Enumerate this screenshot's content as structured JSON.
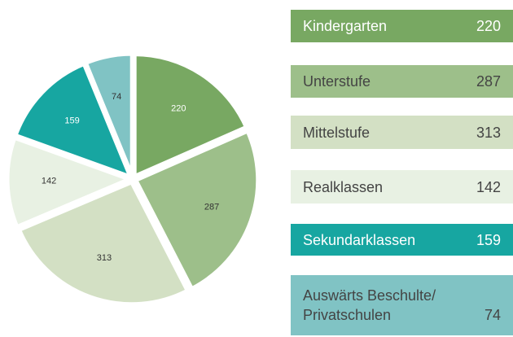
{
  "chart_data": {
    "type": "pie",
    "categories": [
      "Kindergarten",
      "Unterstufe",
      "Mittelstufe",
      "Realklassen",
      "Sekundarklassen",
      "Auswärts Beschulte/ Privatschulen"
    ],
    "values": [
      220,
      287,
      313,
      142,
      159,
      74
    ],
    "colors": [
      "#78a862",
      "#9dbf8a",
      "#d3e0c4",
      "#e8f1e3",
      "#17a6a1",
      "#80c3c4"
    ],
    "start_angle": 0,
    "direction": "clockwise",
    "legend": "right"
  }
}
